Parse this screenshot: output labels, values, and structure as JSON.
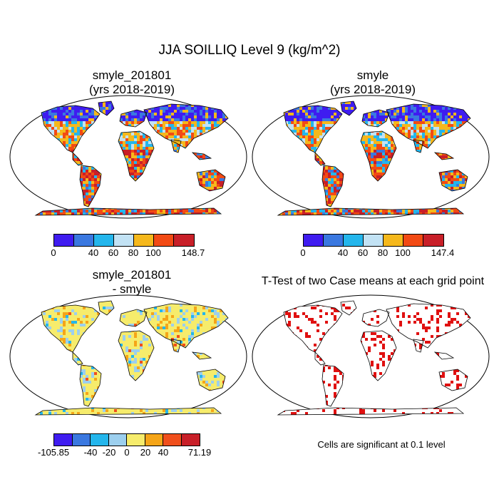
{
  "main_title": "JJA SOILLIQ Level 9 (kg/m^2)",
  "panels": [
    {
      "id": "p1",
      "title_line1": "smyle_201801",
      "title_line2": "(yrs 2018-2019)"
    },
    {
      "id": "p2",
      "title_line1": "smyle",
      "title_line2": "(yrs 2018-2019)"
    },
    {
      "id": "p3",
      "title_line1": "smyle_201801",
      "title_line2": "- smyle"
    },
    {
      "id": "p4",
      "title_line1": "T-Test of two Case means at each grid point",
      "title_line2": ""
    }
  ],
  "colorbars": {
    "cb1": {
      "colors": [
        "#3f1cf0",
        "#3a78e0",
        "#24b6ec",
        "#c2e2f4",
        "#f5b81c",
        "#f24a14",
        "#c81f28"
      ],
      "labels": [
        "0",
        "40",
        "60",
        "80",
        "100",
        "148.7"
      ]
    },
    "cb2": {
      "colors": [
        "#3f1cf0",
        "#3a78e0",
        "#24b6ec",
        "#c2e2f4",
        "#f5b81c",
        "#f24a14",
        "#c81f28"
      ],
      "labels": [
        "0",
        "40",
        "60",
        "80",
        "100",
        "147.4"
      ]
    },
    "cb3": {
      "colors": [
        "#3f1cf0",
        "#3a78e0",
        "#24b6ec",
        "#9ccfee",
        "#f6ec6c",
        "#f5a518",
        "#f04f1c",
        "#c81f28"
      ],
      "labels": [
        "-105.85",
        "-40",
        "-20",
        "0",
        "20",
        "40",
        "71.19"
      ]
    }
  },
  "significance_note": "Cells are significant at 0.1 level"
}
